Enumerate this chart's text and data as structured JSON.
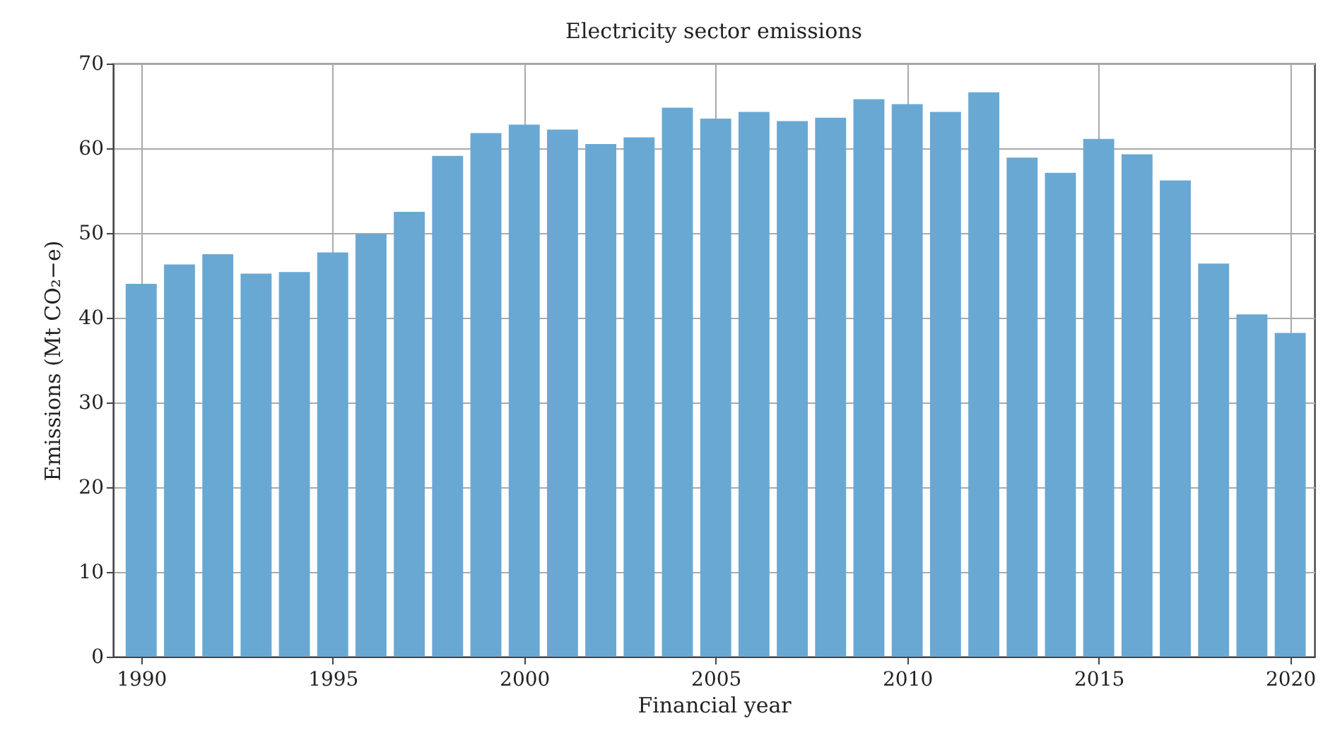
{
  "chart_data": {
    "type": "bar",
    "title": "Electricity sector emissions",
    "xlabel": "Financial year",
    "ylabel": "Emissions (Mt CO₂−e)",
    "x": [
      1990,
      1991,
      1992,
      1993,
      1994,
      1995,
      1996,
      1997,
      1998,
      1999,
      2000,
      2001,
      2002,
      2003,
      2004,
      2005,
      2006,
      2007,
      2008,
      2009,
      2010,
      2011,
      2012,
      2013,
      2014,
      2015,
      2016,
      2017,
      2018,
      2019,
      2020
    ],
    "values": [
      44,
      46.3,
      47.5,
      45.2,
      45.4,
      47.7,
      49.9,
      52.5,
      59.1,
      61.8,
      62.8,
      62.2,
      60.5,
      61.3,
      64.8,
      63.5,
      64.3,
      63.2,
      63.6,
      65.8,
      65.2,
      64.3,
      66.6,
      58.9,
      57.1,
      61.1,
      59.3,
      56.2,
      46.4,
      40.4,
      38.2
    ],
    "color": "#6aa8d4",
    "xlim": [
      1989.45,
      2020.45
    ],
    "xticks": [
      1990,
      1995,
      2000,
      2005,
      2010,
      2015,
      2020
    ],
    "ylim": [
      0,
      70
    ],
    "yticks": [
      0,
      10,
      20,
      30,
      40,
      50,
      60,
      70
    ],
    "grid": true
  }
}
